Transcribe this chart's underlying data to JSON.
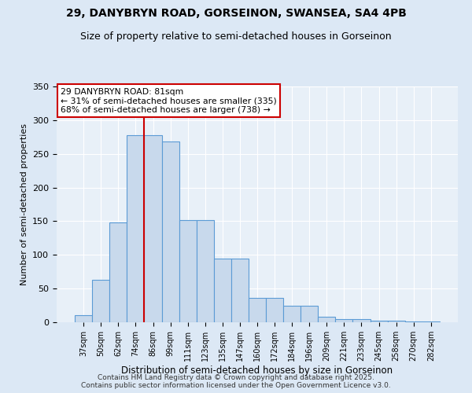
{
  "title1": "29, DANYBRYN ROAD, GORSEINON, SWANSEA, SA4 4PB",
  "title2": "Size of property relative to semi-detached houses in Gorseinon",
  "xlabel": "Distribution of semi-detached houses by size in Gorseinon",
  "ylabel": "Number of semi-detached properties",
  "footer1": "Contains HM Land Registry data © Crown copyright and database right 2025.",
  "footer2": "Contains public sector information licensed under the Open Government Licence v3.0.",
  "categories": [
    "37sqm",
    "50sqm",
    "62sqm",
    "74sqm",
    "86sqm",
    "99sqm",
    "111sqm",
    "123sqm",
    "135sqm",
    "147sqm",
    "160sqm",
    "172sqm",
    "184sqm",
    "196sqm",
    "209sqm",
    "221sqm",
    "233sqm",
    "245sqm",
    "258sqm",
    "270sqm",
    "282sqm"
  ],
  "values": [
    10,
    63,
    148,
    278,
    278,
    268,
    152,
    152,
    95,
    95,
    36,
    36,
    24,
    24,
    8,
    5,
    5,
    2,
    2,
    1,
    1
  ],
  "bar_color": "#c8d9ec",
  "bar_edge_color": "#5b9bd5",
  "subject_label": "29 DANYBRYN ROAD: 81sqm",
  "smaller_label": "← 31% of semi-detached houses are smaller (335)",
  "larger_label": "68% of semi-detached houses are larger (738) →",
  "annotation_box_color": "#ffffff",
  "annotation_box_edge": "#cc0000",
  "red_line_color": "#cc0000",
  "bg_color": "#dce8f5",
  "plot_bg": "#e8f0f8",
  "ylim": [
    0,
    350
  ],
  "yticks": [
    0,
    50,
    100,
    150,
    200,
    250,
    300,
    350
  ],
  "grid_color": "#ffffff",
  "title_fontsize": 10,
  "subtitle_fontsize": 9,
  "red_line_bar_index": 4
}
